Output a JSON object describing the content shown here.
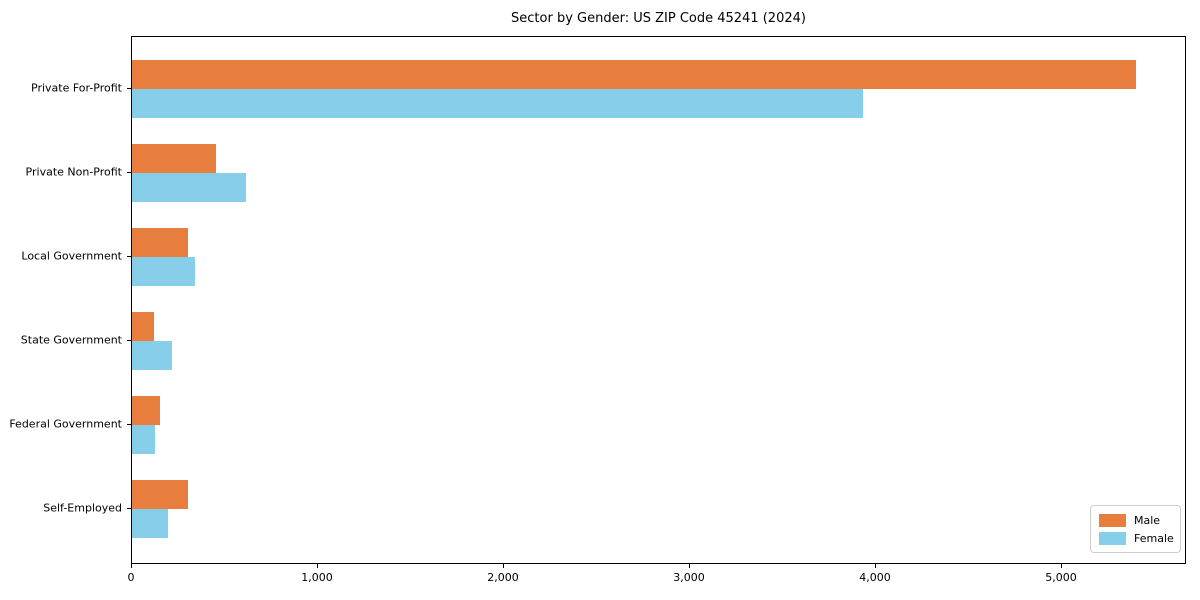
{
  "chart_data": {
    "type": "bar",
    "orientation": "horizontal",
    "title": "Sector by Gender: US ZIP Code 45241 (2024)",
    "categories": [
      "Private For-Profit",
      "Private Non-Profit",
      "Local Government",
      "State Government",
      "Federal Government",
      "Self-Employed"
    ],
    "series": [
      {
        "name": "Male",
        "color": "#e87e3e",
        "values": [
          5400,
          450,
          300,
          120,
          150,
          300
        ]
      },
      {
        "name": "Female",
        "color": "#87ceeb",
        "values": [
          3930,
          615,
          340,
          215,
          125,
          195
        ]
      }
    ],
    "xlabel": "",
    "ylabel": "",
    "xlim": [
      0,
      5672
    ],
    "xticks": {
      "values": [
        0,
        1000,
        2000,
        3000,
        4000,
        5000
      ],
      "labels": [
        "0",
        "1,000",
        "2,000",
        "3,000",
        "4,000",
        "5,000"
      ]
    },
    "grid": false,
    "legend": {
      "position": "lower right",
      "entries": [
        "Male",
        "Female"
      ]
    },
    "colors": {
      "male": "#e87e3e",
      "female": "#87ceeb",
      "axis": "#000000",
      "background": "#ffffff",
      "legend_border": "#cccccc"
    }
  }
}
